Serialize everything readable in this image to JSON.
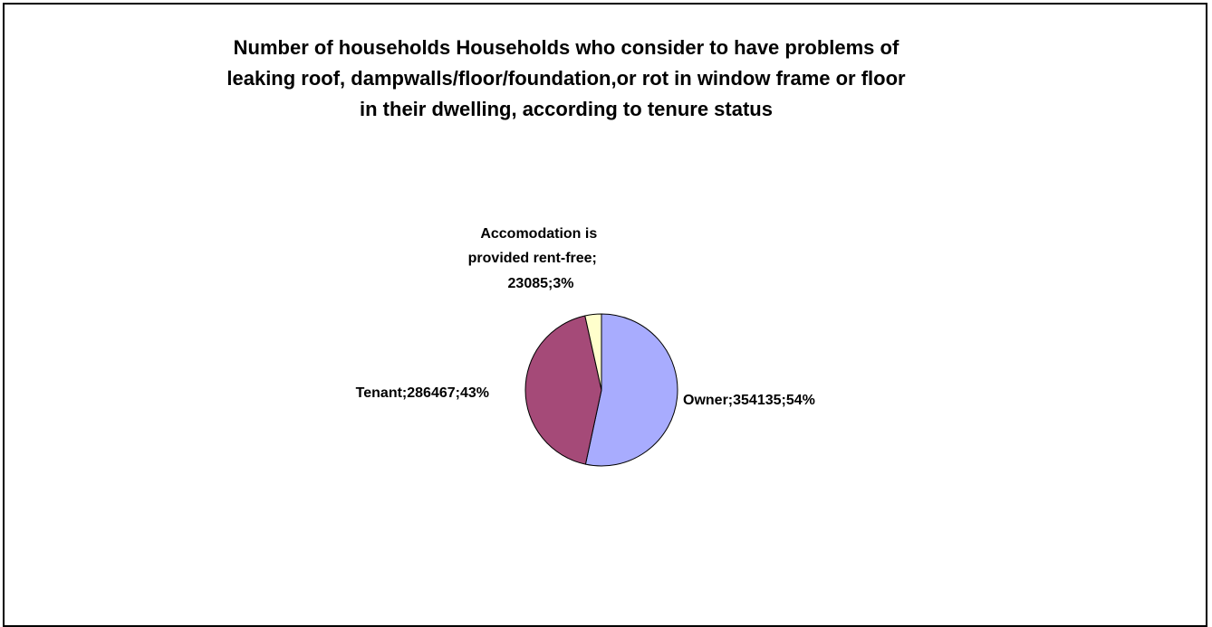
{
  "chart_data": {
    "type": "pie",
    "title_lines": [
      "Number of households Households who consider to have problems of",
      "leaking roof, dampwalls/floor/foundation,or rot in window frame or floor",
      "in their dwelling, according to tenure status"
    ],
    "slices": [
      {
        "label_lines": [
          "Owner;354135;54%"
        ],
        "category": "Owner",
        "value": 354135,
        "percent": 54,
        "color": "#a8acfe"
      },
      {
        "label_lines": [
          "Tenant;286467;43%"
        ],
        "category": "Tenant",
        "value": 286467,
        "percent": 43,
        "color": "#a54a78"
      },
      {
        "label_lines": [
          "Accomodation is",
          "provided rent-free;",
          "23085;3%"
        ],
        "category": "Accomodation is provided rent-free",
        "value": 23085,
        "percent": 3,
        "color": "#ffffcc"
      }
    ],
    "legend": "none",
    "start_angle_deg": 0,
    "direction": "clockwise",
    "edge_color": "#000000"
  }
}
